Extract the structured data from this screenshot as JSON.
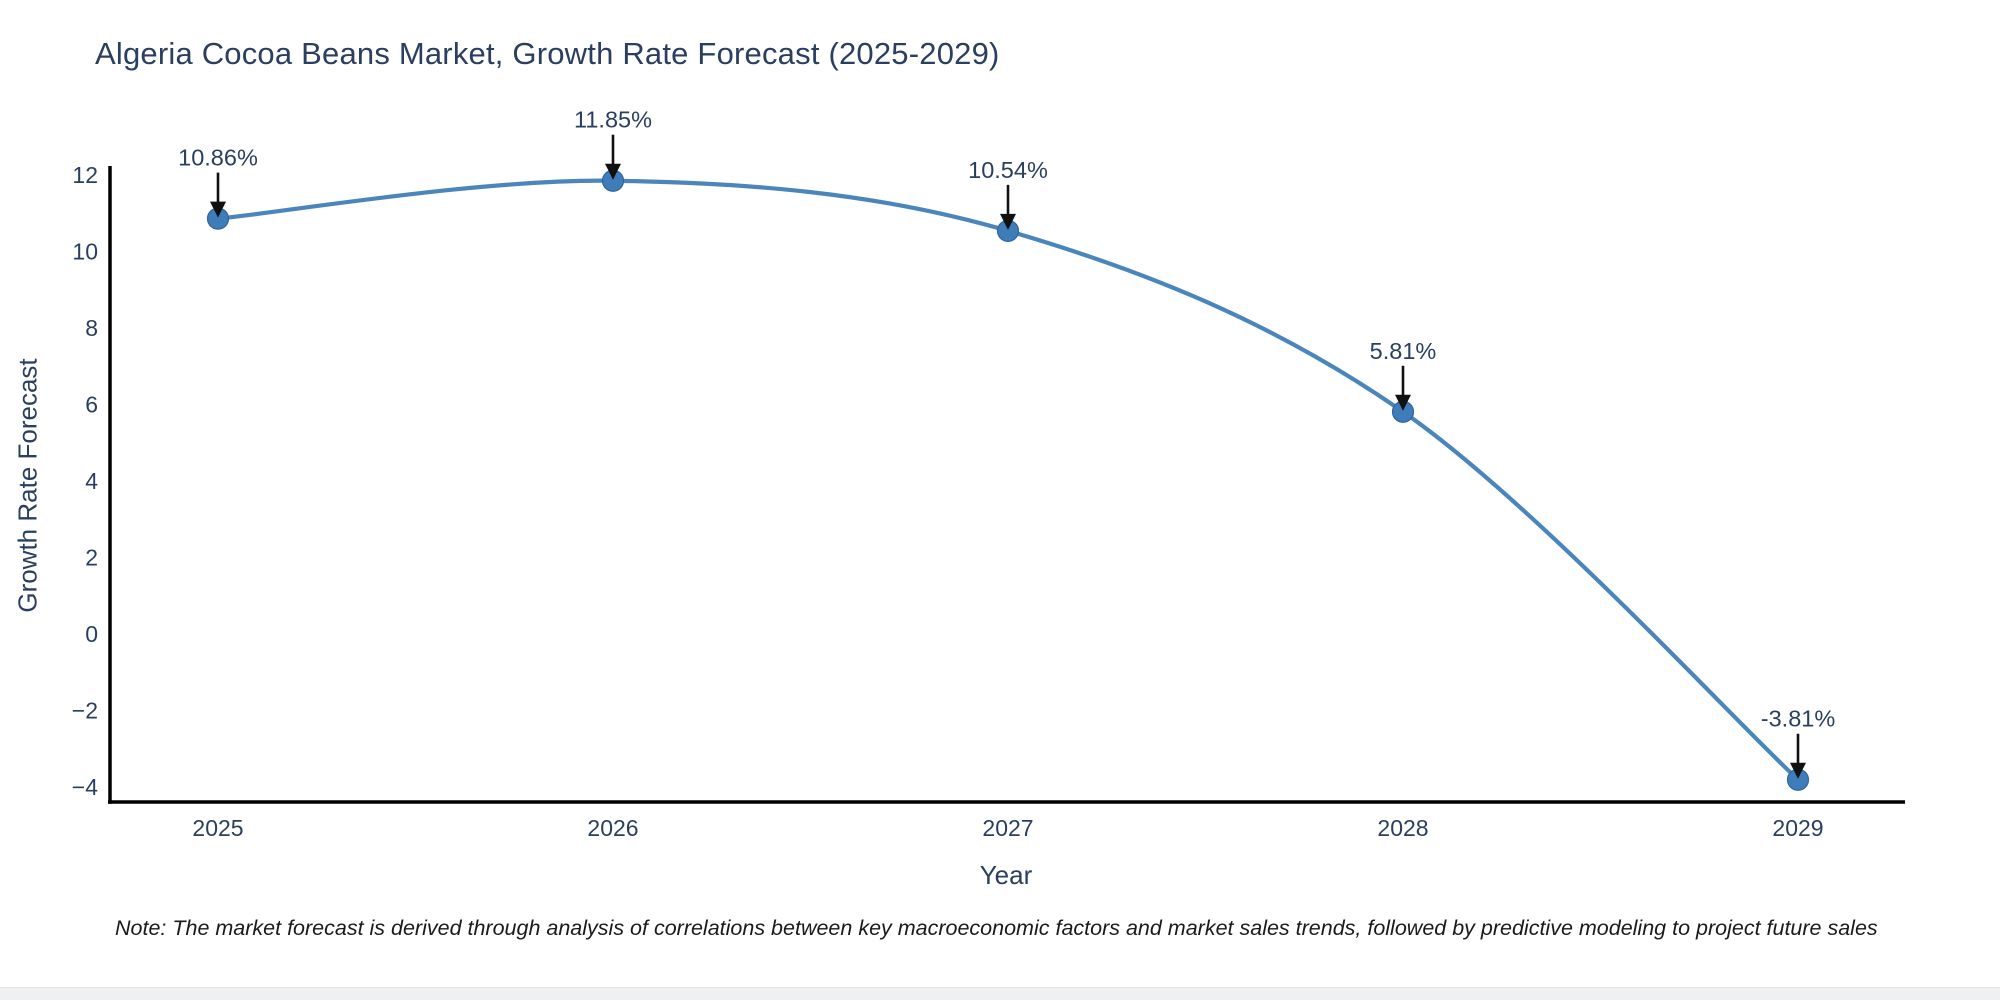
{
  "header": {
    "title": "Algeria Cocoa Beans Market, Growth Rate Forecast (2025-2029)"
  },
  "axes": {
    "xlabel": "Year",
    "ylabel": "Growth Rate Forecast"
  },
  "note": {
    "text": "Note: The market forecast is derived through analysis of correlations between key macroeconomic factors and market sales trends, followed by predictive modeling to project future sales"
  },
  "chart_data": {
    "type": "line",
    "title": "Algeria Cocoa Beans Market, Growth Rate Forecast (2025-2029)",
    "xlabel": "Year",
    "ylabel": "Growth Rate Forecast",
    "x": [
      2025,
      2026,
      2027,
      2028,
      2029
    ],
    "values": [
      10.86,
      11.85,
      10.54,
      5.81,
      -3.81
    ],
    "point_labels": [
      "10.86%",
      "11.85%",
      "10.54%",
      "5.81%",
      "-3.81%"
    ],
    "xtick_labels": [
      "2025",
      "2026",
      "2027",
      "2028",
      "2029"
    ],
    "ytick_values": [
      12,
      10,
      8,
      6,
      4,
      2,
      0,
      -2,
      -4
    ],
    "ytick_labels": [
      "12",
      "10",
      "8",
      "6",
      "4",
      "2",
      "0",
      "−2",
      "−4"
    ],
    "ylim": [
      -4,
      12
    ],
    "grid": false,
    "legend_position": "none",
    "smooth": true,
    "colors": {
      "line": "#4a85bb",
      "marker_fill": "#3e7cba",
      "marker_stroke": "#30669c",
      "axis_line": "#000000",
      "tick_text": "#2a3f5f",
      "annotation_text": "#2a3f5f",
      "annotation_arrow": "#111111"
    }
  }
}
